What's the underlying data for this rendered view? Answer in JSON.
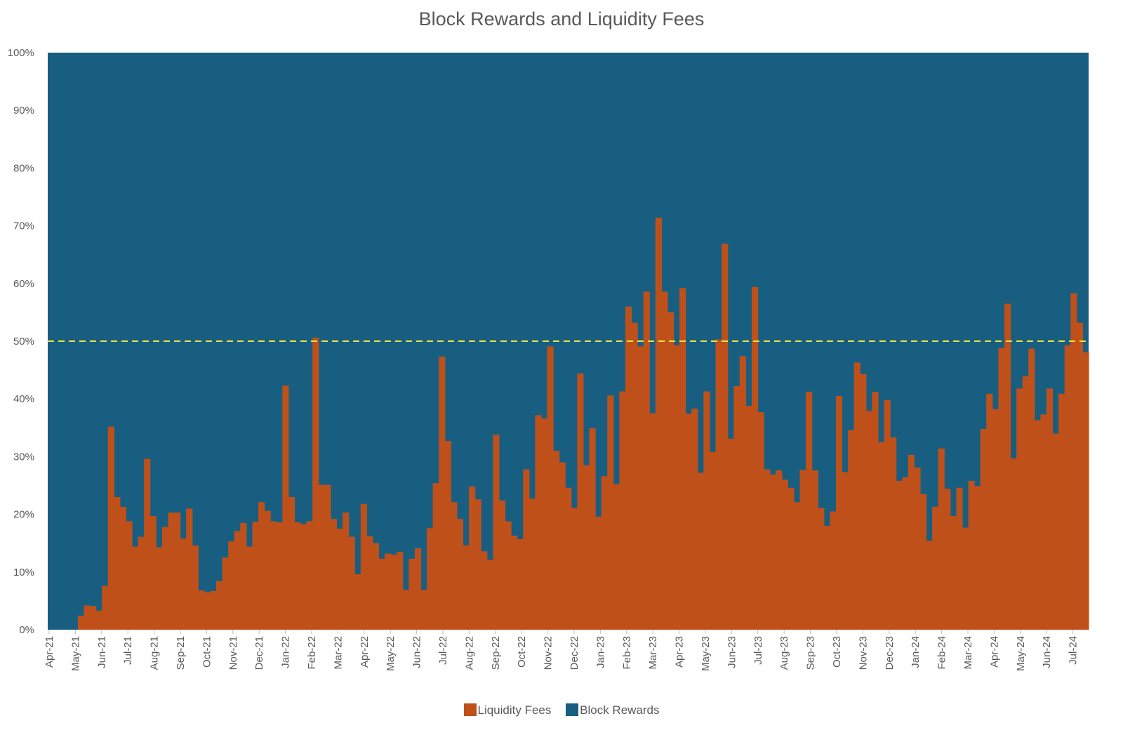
{
  "chart_data": {
    "type": "bar",
    "stacked": true,
    "percent": true,
    "title": "Block Rewards and Liquidity Fees",
    "y_ticks": [
      "0%",
      "10%",
      "20%",
      "30%",
      "40%",
      "50%",
      "60%",
      "70%",
      "80%",
      "90%",
      "100%"
    ],
    "ylim": [
      0,
      100
    ],
    "x_ticks": [
      "Apr-21",
      "May-21",
      "Jun-21",
      "Jul-21",
      "Aug-21",
      "Sep-21",
      "Oct-21",
      "Nov-21",
      "Dec-21",
      "Jan-22",
      "Feb-22",
      "Mar-22",
      "Apr-22",
      "May-22",
      "Jun-22",
      "Jul-22",
      "Aug-22",
      "Sep-22",
      "Oct-22",
      "Nov-22",
      "Dec-22",
      "Jan-23",
      "Feb-23",
      "Mar-23",
      "Apr-23",
      "May-23",
      "Jun-23",
      "Jul-23",
      "Aug-23",
      "Sep-23",
      "Oct-23",
      "Nov-23",
      "Dec-23",
      "Jan-24",
      "Feb-24",
      "Mar-24",
      "Apr-24",
      "May-24",
      "Jun-24",
      "Jul-24"
    ],
    "reference_line": {
      "value": 50,
      "style": "dashed",
      "color": "#f0e442"
    },
    "series": [
      {
        "name": "Liquidity Fees",
        "color": "#c0501a",
        "values": [
          0,
          0,
          0,
          0,
          0,
          2.4,
          4.2,
          4.1,
          3.3,
          7.6,
          35.2,
          23.0,
          21.3,
          18.8,
          14.4,
          16.1,
          29.6,
          19.7,
          14.3,
          17.8,
          20.3,
          20.3,
          15.8,
          21.0,
          14.6,
          6.8,
          6.5,
          6.7,
          8.4,
          12.5,
          15.3,
          17.1,
          18.5,
          14.4,
          18.7,
          22.1,
          20.6,
          18.8,
          18.6,
          42.3,
          23.0,
          18.6,
          18.3,
          18.8,
          50.6,
          25.1,
          25.1,
          19.2,
          17.5,
          20.3,
          16.1,
          9.6,
          21.8,
          16.2,
          15.0,
          12.3,
          13.2,
          13.0,
          13.5,
          6.9,
          12.3,
          14.1,
          6.9,
          17.6,
          25.4,
          47.3,
          32.7,
          22.1,
          19.2,
          14.6,
          24.8,
          22.6,
          13.6,
          12.1,
          33.8,
          22.4,
          18.8,
          16.3,
          15.7,
          27.8,
          22.7,
          37.2,
          36.6,
          49.1,
          31.0,
          29.0,
          24.6,
          21.1,
          44.4,
          28.5,
          34.9,
          19.6,
          26.6,
          40.6,
          25.2,
          41.3,
          56.0,
          53.2,
          49.1,
          58.6,
          37.5,
          71.4,
          58.6,
          55.0,
          49.3,
          59.2,
          37.4,
          38.3,
          27.2,
          41.3,
          30.8,
          50.3,
          66.9,
          33.1,
          42.2,
          47.4,
          38.8,
          59.4,
          37.7,
          27.8,
          26.9,
          27.6,
          26.0,
          24.6,
          22.1,
          27.7,
          41.2,
          27.6,
          21.1,
          18.0,
          20.5,
          40.5,
          27.3,
          34.6,
          46.3,
          44.3,
          37.9,
          41.2,
          32.5,
          39.8,
          33.3,
          25.8,
          26.4,
          30.3,
          28.1,
          23.5,
          15.4,
          21.3,
          31.4,
          24.4,
          19.7,
          24.6,
          17.7,
          25.8,
          24.9,
          34.8,
          40.9,
          38.2,
          48.8,
          56.5,
          29.7,
          41.8,
          43.9,
          48.7,
          36.3,
          37.3,
          41.8,
          34.0,
          40.9,
          49.3,
          58.3,
          53.2,
          48.1
        ]
      },
      {
        "name": "Block Rewards",
        "color": "#175e81",
        "values": "100 minus Liquidity Fees"
      }
    ],
    "legend_position": "bottom",
    "grid": false
  }
}
